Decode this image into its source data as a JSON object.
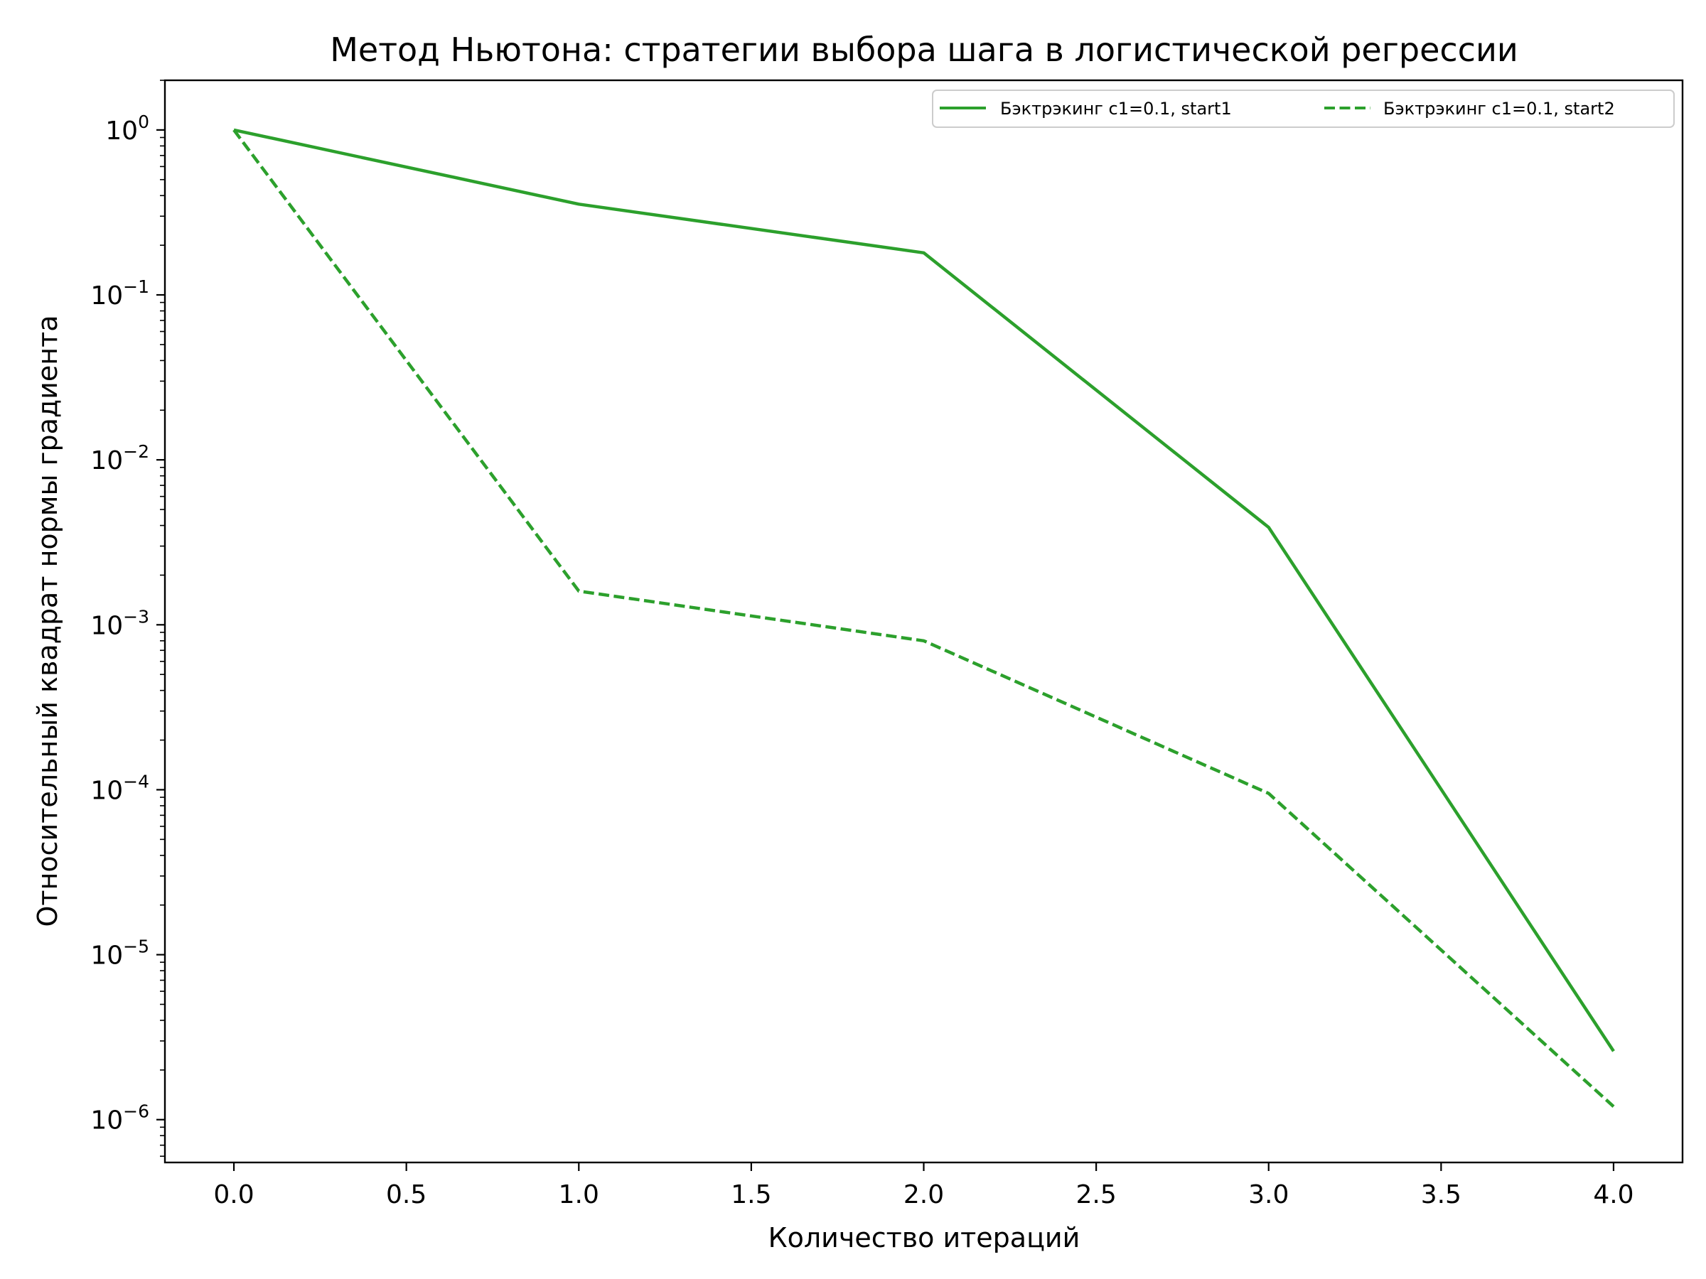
{
  "chart_data": {
    "type": "line",
    "title": "Метод Ньютона: стратегии выбора шага в логистической регрессии",
    "xlabel": "Количество итераций",
    "ylabel": "Относительный квадрат нормы градиента",
    "xlim": [
      -0.2,
      4.2
    ],
    "ylim": [
      5.5e-07,
      2.0
    ],
    "yscale": "log",
    "x_ticks": [
      "0.0",
      "0.5",
      "1.0",
      "1.5",
      "2.0",
      "2.5",
      "3.0",
      "3.5",
      "4.0"
    ],
    "y_ticks": [
      {
        "base": "10",
        "exp": "0"
      },
      {
        "base": "10",
        "exp": "−1"
      },
      {
        "base": "10",
        "exp": "−2"
      },
      {
        "base": "10",
        "exp": "−3"
      },
      {
        "base": "10",
        "exp": "−4"
      },
      {
        "base": "10",
        "exp": "−5"
      },
      {
        "base": "10",
        "exp": "−6"
      }
    ],
    "grid": false,
    "legend_position": "top-right",
    "color": "#2ca02c",
    "series": [
      {
        "name": "Бэктрэкинг c1=0.1, start1",
        "style": "solid",
        "x": [
          0,
          1,
          2,
          3,
          4
        ],
        "y": [
          1.0,
          0.355,
          0.18,
          0.0039,
          2.6e-06
        ]
      },
      {
        "name": "Бэктрэкинг c1=0.1, start2",
        "style": "dashed",
        "x": [
          0,
          1,
          2,
          3,
          4
        ],
        "y": [
          1.0,
          0.0016,
          0.0008,
          9.5e-05,
          1.2e-06
        ]
      }
    ]
  }
}
